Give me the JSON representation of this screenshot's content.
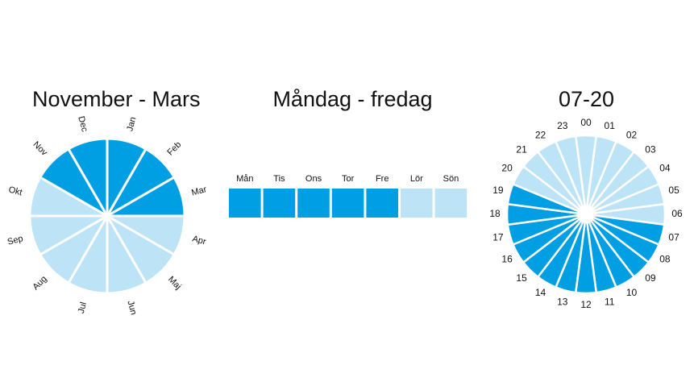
{
  "colors": {
    "active": "#009fe3",
    "inactive": "#bde3f7",
    "text": "#111111"
  },
  "months_panel": {
    "title": "November - Mars",
    "segments": [
      {
        "label": "Jan",
        "active": true
      },
      {
        "label": "Feb",
        "active": true
      },
      {
        "label": "Mar",
        "active": true
      },
      {
        "label": "Apr",
        "active": false
      },
      {
        "label": "Maj",
        "active": false
      },
      {
        "label": "Jun",
        "active": false
      },
      {
        "label": "Jul",
        "active": false
      },
      {
        "label": "Aug",
        "active": false
      },
      {
        "label": "Sep",
        "active": false
      },
      {
        "label": "Okt",
        "active": false
      },
      {
        "label": "Nov",
        "active": true
      },
      {
        "label": "Dec",
        "active": true
      }
    ]
  },
  "days_panel": {
    "title": "Måndag - fredag",
    "days": [
      {
        "label": "Mån",
        "active": true
      },
      {
        "label": "Tis",
        "active": true
      },
      {
        "label": "Ons",
        "active": true
      },
      {
        "label": "Tor",
        "active": true
      },
      {
        "label": "Fre",
        "active": true
      },
      {
        "label": "Lör",
        "active": false
      },
      {
        "label": "Sön",
        "active": false
      }
    ]
  },
  "hours_panel": {
    "title": "07-20",
    "segments": [
      {
        "label": "00",
        "active": false
      },
      {
        "label": "01",
        "active": false
      },
      {
        "label": "02",
        "active": false
      },
      {
        "label": "03",
        "active": false
      },
      {
        "label": "04",
        "active": false
      },
      {
        "label": "05",
        "active": false
      },
      {
        "label": "06",
        "active": false
      },
      {
        "label": "07",
        "active": true
      },
      {
        "label": "08",
        "active": true
      },
      {
        "label": "09",
        "active": true
      },
      {
        "label": "10",
        "active": true
      },
      {
        "label": "11",
        "active": true
      },
      {
        "label": "12",
        "active": true
      },
      {
        "label": "13",
        "active": true
      },
      {
        "label": "14",
        "active": true
      },
      {
        "label": "15",
        "active": true
      },
      {
        "label": "16",
        "active": true
      },
      {
        "label": "17",
        "active": true
      },
      {
        "label": "18",
        "active": true
      },
      {
        "label": "19",
        "active": true
      },
      {
        "label": "20",
        "active": false
      },
      {
        "label": "21",
        "active": false
      },
      {
        "label": "22",
        "active": false
      },
      {
        "label": "23",
        "active": false
      }
    ]
  }
}
